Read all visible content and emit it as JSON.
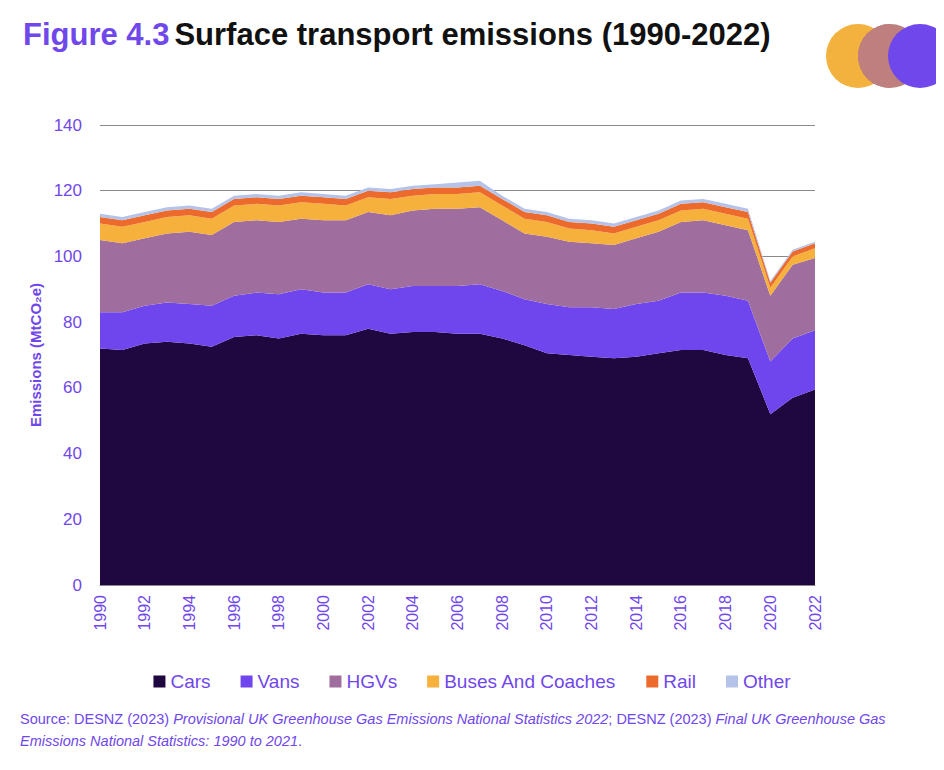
{
  "chart_data": {
    "type": "area",
    "title": "Figure 4.3 Surface transport emissions (1990-2022)",
    "y_label": "Emissions (MtCO₂e)",
    "source": [
      "Source: DESNZ (2023) ",
      "Provisional UK Greenhouse Gas Emissions National Statistics 2022",
      "; DESNZ (2023) ",
      "Final UK Greenhouse Gas Emissions National Statistics: 1990 to 2021",
      "."
    ],
    "categories": [
      "1990",
      null,
      "1992",
      null,
      "1994",
      null,
      "1996",
      null,
      "1998",
      null,
      "2000",
      null,
      "2002",
      null,
      "2004",
      null,
      "2006",
      null,
      "2008",
      null,
      "2010",
      null,
      "2012",
      null,
      "2014",
      null,
      "2016",
      null,
      "2018",
      null,
      "2020",
      null,
      "2022"
    ],
    "stacked": true,
    "grid": true,
    "legend": "bottom",
    "ylim": [
      0,
      140
    ],
    "yticks": [
      0,
      20,
      40,
      60,
      80,
      100,
      120,
      140
    ],
    "series": [
      {
        "name": "Cars",
        "color": "#1f0740",
        "values": [
          72,
          71.5,
          73.5,
          74,
          73.5,
          72.5,
          75.5,
          76,
          75,
          76.5,
          76,
          76,
          78,
          76.5,
          77,
          77,
          76.5,
          76.5,
          75,
          73,
          70.5,
          70,
          69.5,
          69,
          69.5,
          70.5,
          71.5,
          71.5,
          70,
          69,
          52,
          57,
          59.5
        ]
      },
      {
        "name": "Vans",
        "color": "#6f45ee",
        "values": [
          11,
          11.5,
          11.5,
          12,
          12,
          12.5,
          12.5,
          13,
          13.5,
          13.5,
          13,
          13,
          13.5,
          13.5,
          14,
          14,
          14.5,
          15,
          14.5,
          14,
          15,
          14.5,
          15,
          15,
          16,
          16,
          17.5,
          17.5,
          18,
          17.5,
          16,
          18,
          18
        ]
      },
      {
        "name": "HGVs",
        "color": "#9f6e9e",
        "values": [
          22,
          21,
          20.5,
          21,
          22,
          21.5,
          22.5,
          22,
          22,
          21.5,
          22,
          22,
          22,
          22.5,
          23,
          23.5,
          23.5,
          23.5,
          21.5,
          20,
          20.5,
          20,
          19.5,
          19.5,
          20,
          21,
          21.5,
          22,
          21.5,
          21.5,
          20,
          22.5,
          22
        ]
      },
      {
        "name": "Buses And Coaches",
        "color": "#f5b13b",
        "values": [
          5,
          5,
          5,
          5,
          5,
          5,
          5,
          5,
          5,
          5,
          5,
          4.5,
          4.5,
          5,
          4.5,
          4.5,
          4.5,
          4.5,
          4.5,
          4.5,
          4.5,
          4,
          4,
          3.5,
          3.5,
          3.5,
          3.5,
          3.5,
          3.5,
          3.5,
          2.5,
          2.5,
          3
        ]
      },
      {
        "name": "Rail",
        "color": "#ec6a2c",
        "values": [
          2,
          2,
          2,
          2,
          2,
          2,
          2,
          2,
          2,
          2,
          2,
          2,
          2,
          2,
          2,
          2,
          2,
          2,
          2,
          2,
          2,
          2,
          2,
          2,
          2,
          2,
          2,
          2,
          2,
          2,
          1.5,
          1.5,
          1.5
        ]
      },
      {
        "name": "Other",
        "color": "#b5c3e9",
        "values": [
          1,
          1,
          1,
          1,
          1,
          1,
          1,
          1,
          1,
          1,
          1,
          1,
          1,
          1,
          1,
          1,
          1.5,
          1.5,
          1,
          1,
          1,
          1,
          1,
          1,
          1,
          1,
          1,
          1,
          1,
          1,
          0.5,
          0.5,
          0.5
        ]
      }
    ]
  }
}
